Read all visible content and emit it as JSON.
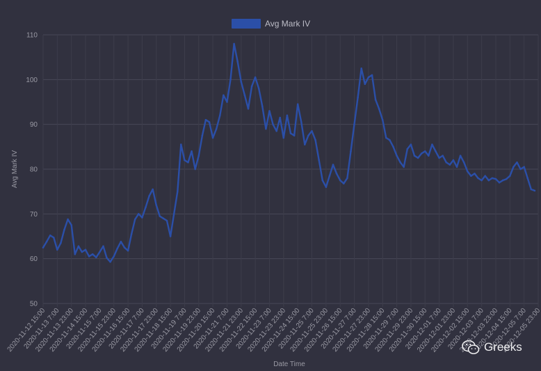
{
  "chart_data": {
    "type": "line",
    "title": "",
    "xlabel": "Date Time",
    "ylabel": "Avg Mark IV",
    "ylim": [
      50,
      110
    ],
    "yticks": [
      50,
      60,
      70,
      80,
      90,
      100,
      110
    ],
    "grid": true,
    "legend_position": "top-center",
    "series": [
      {
        "name": "Avg Mark IV",
        "color": "#2b4fa8",
        "points": [
          [
            "2020-11-12 15:00",
            62.5
          ],
          [
            "2020-11-12 19:00",
            63.8
          ],
          [
            "2020-11-12 23:00",
            65.2
          ],
          [
            "2020-11-13 03:00",
            64.7
          ],
          [
            "2020-11-13 07:00",
            62.0
          ],
          [
            "2020-11-13 11:00",
            63.5
          ],
          [
            "2020-11-13 15:00",
            66.5
          ],
          [
            "2020-11-13 19:00",
            68.8
          ],
          [
            "2020-11-13 23:00",
            67.5
          ],
          [
            "2020-11-14 03:00",
            61.0
          ],
          [
            "2020-11-14 07:00",
            62.8
          ],
          [
            "2020-11-14 11:00",
            61.5
          ],
          [
            "2020-11-14 15:00",
            62.0
          ],
          [
            "2020-11-14 19:00",
            60.5
          ],
          [
            "2020-11-14 23:00",
            61.0
          ],
          [
            "2020-11-15 03:00",
            60.3
          ],
          [
            "2020-11-15 07:00",
            61.5
          ],
          [
            "2020-11-15 11:00",
            62.8
          ],
          [
            "2020-11-15 15:00",
            60.2
          ],
          [
            "2020-11-15 19:00",
            59.3
          ],
          [
            "2020-11-15 23:00",
            60.5
          ],
          [
            "2020-11-16 03:00",
            62.3
          ],
          [
            "2020-11-16 07:00",
            63.8
          ],
          [
            "2020-11-16 11:00",
            62.5
          ],
          [
            "2020-11-16 15:00",
            61.8
          ],
          [
            "2020-11-16 19:00",
            65.5
          ],
          [
            "2020-11-16 23:00",
            68.8
          ],
          [
            "2020-11-17 03:00",
            70.0
          ],
          [
            "2020-11-17 07:00",
            69.2
          ],
          [
            "2020-11-17 11:00",
            71.5
          ],
          [
            "2020-11-17 15:00",
            74.0
          ],
          [
            "2020-11-17 19:00",
            75.5
          ],
          [
            "2020-11-17 23:00",
            72.0
          ],
          [
            "2020-11-18 03:00",
            69.5
          ],
          [
            "2020-11-18 07:00",
            69.0
          ],
          [
            "2020-11-18 11:00",
            68.5
          ],
          [
            "2020-11-18 15:00",
            65.0
          ],
          [
            "2020-11-18 19:00",
            70.0
          ],
          [
            "2020-11-18 23:00",
            75.0
          ],
          [
            "2020-11-19 03:00",
            85.5
          ],
          [
            "2020-11-19 07:00",
            82.0
          ],
          [
            "2020-11-19 11:00",
            81.5
          ],
          [
            "2020-11-19 15:00",
            84.0
          ],
          [
            "2020-11-19 19:00",
            80.0
          ],
          [
            "2020-11-19 23:00",
            83.0
          ],
          [
            "2020-11-20 03:00",
            87.5
          ],
          [
            "2020-11-20 07:00",
            91.0
          ],
          [
            "2020-11-20 11:00",
            90.5
          ],
          [
            "2020-11-20 15:00",
            87.0
          ],
          [
            "2020-11-20 19:00",
            89.0
          ],
          [
            "2020-11-20 23:00",
            92.0
          ],
          [
            "2020-11-21 03:00",
            96.5
          ],
          [
            "2020-11-21 07:00",
            95.0
          ],
          [
            "2020-11-21 11:00",
            100.0
          ],
          [
            "2020-11-21 15:00",
            108.0
          ],
          [
            "2020-11-21 19:00",
            104.0
          ],
          [
            "2020-11-21 23:00",
            99.5
          ],
          [
            "2020-11-22 03:00",
            96.5
          ],
          [
            "2020-11-22 07:00",
            93.5
          ],
          [
            "2020-11-22 11:00",
            98.5
          ],
          [
            "2020-11-22 15:00",
            100.5
          ],
          [
            "2020-11-22 19:00",
            98.0
          ],
          [
            "2020-11-22 23:00",
            94.0
          ],
          [
            "2020-11-23 03:00",
            89.0
          ],
          [
            "2020-11-23 07:00",
            93.0
          ],
          [
            "2020-11-23 11:00",
            90.0
          ],
          [
            "2020-11-23 15:00",
            88.5
          ],
          [
            "2020-11-23 19:00",
            91.5
          ],
          [
            "2020-11-23 23:00",
            87.0
          ],
          [
            "2020-11-24 03:00",
            92.0
          ],
          [
            "2020-11-24 07:00",
            88.0
          ],
          [
            "2020-11-24 11:00",
            87.5
          ],
          [
            "2020-11-24 15:00",
            94.5
          ],
          [
            "2020-11-24 19:00",
            90.5
          ],
          [
            "2020-11-24 23:00",
            85.5
          ],
          [
            "2020-11-25 03:00",
            87.5
          ],
          [
            "2020-11-25 07:00",
            88.5
          ],
          [
            "2020-11-25 11:00",
            86.5
          ],
          [
            "2020-11-25 15:00",
            82.0
          ],
          [
            "2020-11-25 19:00",
            77.5
          ],
          [
            "2020-11-25 23:00",
            76.0
          ],
          [
            "2020-11-26 03:00",
            78.5
          ],
          [
            "2020-11-26 07:00",
            81.0
          ],
          [
            "2020-11-26 11:00",
            79.0
          ],
          [
            "2020-11-26 15:00",
            77.5
          ],
          [
            "2020-11-26 19:00",
            76.8
          ],
          [
            "2020-11-26 23:00",
            78.0
          ],
          [
            "2020-11-27 03:00",
            84.0
          ],
          [
            "2020-11-27 07:00",
            90.0
          ],
          [
            "2020-11-27 11:00",
            96.0
          ],
          [
            "2020-11-27 15:00",
            102.5
          ],
          [
            "2020-11-27 19:00",
            99.0
          ],
          [
            "2020-11-27 23:00",
            100.5
          ],
          [
            "2020-11-28 03:00",
            101.0
          ],
          [
            "2020-11-28 07:00",
            95.5
          ],
          [
            "2020-11-28 11:00",
            93.5
          ],
          [
            "2020-11-28 15:00",
            91.0
          ],
          [
            "2020-11-28 19:00",
            87.0
          ],
          [
            "2020-11-28 23:00",
            86.5
          ],
          [
            "2020-11-29 03:00",
            85.0
          ],
          [
            "2020-11-29 07:00",
            83.0
          ],
          [
            "2020-11-29 11:00",
            81.5
          ],
          [
            "2020-11-29 15:00",
            80.5
          ],
          [
            "2020-11-29 19:00",
            84.5
          ],
          [
            "2020-11-29 23:00",
            85.5
          ],
          [
            "2020-11-30 03:00",
            83.0
          ],
          [
            "2020-11-30 07:00",
            82.5
          ],
          [
            "2020-11-30 11:00",
            83.5
          ],
          [
            "2020-11-30 15:00",
            84.0
          ],
          [
            "2020-11-30 19:00",
            83.0
          ],
          [
            "2020-11-30 23:00",
            85.5
          ],
          [
            "2020-12-01 03:00",
            84.0
          ],
          [
            "2020-12-01 07:00",
            82.5
          ],
          [
            "2020-12-01 11:00",
            83.0
          ],
          [
            "2020-12-01 15:00",
            81.5
          ],
          [
            "2020-12-01 19:00",
            81.0
          ],
          [
            "2020-12-01 23:00",
            82.0
          ],
          [
            "2020-12-02 03:00",
            80.5
          ],
          [
            "2020-12-02 07:00",
            83.0
          ],
          [
            "2020-12-02 11:00",
            81.5
          ],
          [
            "2020-12-02 15:00",
            79.5
          ],
          [
            "2020-12-02 19:00",
            78.5
          ],
          [
            "2020-12-02 23:00",
            79.0
          ],
          [
            "2020-12-03 03:00",
            78.0
          ],
          [
            "2020-12-03 07:00",
            77.5
          ],
          [
            "2020-12-03 11:00",
            78.5
          ],
          [
            "2020-12-03 15:00",
            77.5
          ],
          [
            "2020-12-03 19:00",
            78.0
          ],
          [
            "2020-12-03 23:00",
            77.8
          ],
          [
            "2020-12-04 03:00",
            77.0
          ],
          [
            "2020-12-04 07:00",
            77.5
          ],
          [
            "2020-12-04 11:00",
            77.8
          ],
          [
            "2020-12-04 15:00",
            78.5
          ],
          [
            "2020-12-04 19:00",
            80.5
          ],
          [
            "2020-12-04 23:00",
            81.5
          ],
          [
            "2020-12-05 03:00",
            80.0
          ],
          [
            "2020-12-05 07:00",
            80.5
          ],
          [
            "2020-12-05 11:00",
            78.0
          ],
          [
            "2020-12-05 15:00",
            75.5
          ],
          [
            "2020-12-05 19:00",
            75.2
          ]
        ]
      }
    ]
  },
  "watermark": {
    "icon": "wechat-icon",
    "text": "Greeks"
  }
}
